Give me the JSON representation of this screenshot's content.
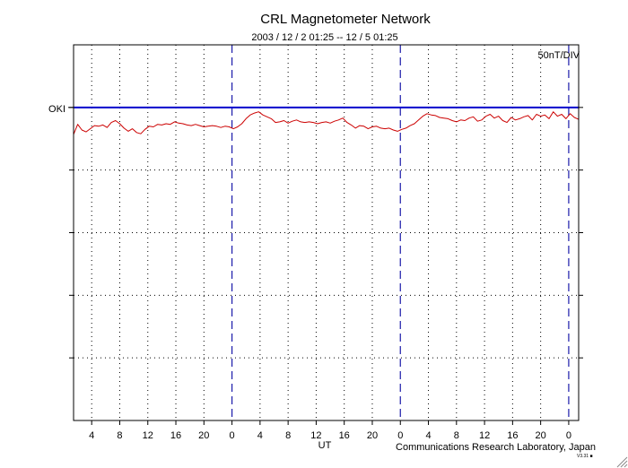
{
  "chart_data": {
    "type": "line",
    "title": "CRL Magnetometer Network",
    "subtitle": "2003 / 12 /  2   01:25 -- 12 /  5   01:25",
    "xlabel": "UT",
    "scale_label": "50nT/DIV",
    "credit": "Communications Research Laboratory, Japan",
    "corner_mark": "V3.31 ■",
    "xlim": [
      1.417,
      73.417
    ],
    "x_tick_values": [
      4,
      8,
      12,
      16,
      20,
      24,
      28,
      32,
      36,
      40,
      44,
      48,
      52,
      56,
      60,
      64,
      68,
      72
    ],
    "x_tick_labels": [
      "4",
      "8",
      "12",
      "16",
      "20",
      "0",
      "4",
      "8",
      "12",
      "16",
      "20",
      "0",
      "4",
      "8",
      "12",
      "16",
      "20",
      "0"
    ],
    "day_boundaries": [
      24,
      48,
      72
    ],
    "ylim": [
      0,
      6
    ],
    "y_gridlines": [
      1,
      2,
      3,
      4,
      5
    ],
    "station": {
      "name": "OKI",
      "baseline": 5
    },
    "series": [
      {
        "name": "OKI",
        "color": "#cc0000",
        "x": [
          1.42,
          2.0,
          2.6,
          3.2,
          3.8,
          4.4,
          5.0,
          5.6,
          6.2,
          6.8,
          7.4,
          8.0,
          8.6,
          9.2,
          9.8,
          10.4,
          11.0,
          11.6,
          12.2,
          12.8,
          13.4,
          14.0,
          14.6,
          15.2,
          15.8,
          16.4,
          17.0,
          17.6,
          18.2,
          18.8,
          19.4,
          20.0,
          20.6,
          21.2,
          21.8,
          22.4,
          23.0,
          23.6,
          24.2,
          24.8,
          25.4,
          26.0,
          26.6,
          27.2,
          27.8,
          28.4,
          29.0,
          29.6,
          30.2,
          30.8,
          31.4,
          32.0,
          32.6,
          33.2,
          33.8,
          34.4,
          35.0,
          35.6,
          36.2,
          36.8,
          37.4,
          38.0,
          38.6,
          39.2,
          39.8,
          40.4,
          41.0,
          41.6,
          42.2,
          42.8,
          43.4,
          44.0,
          44.6,
          45.2,
          45.8,
          46.4,
          47.0,
          47.6,
          48.2,
          48.8,
          49.4,
          50.0,
          50.6,
          51.2,
          51.8,
          52.4,
          53.0,
          53.6,
          54.2,
          54.8,
          55.4,
          56.0,
          56.6,
          57.2,
          57.8,
          58.4,
          59.0,
          59.6,
          60.2,
          60.8,
          61.4,
          62.0,
          62.6,
          63.2,
          63.8,
          64.4,
          65.0,
          65.6,
          66.2,
          66.8,
          67.4,
          68.0,
          68.6,
          69.2,
          69.8,
          70.4,
          71.0,
          71.6,
          72.2,
          72.8,
          73.4
        ],
        "y": [
          4.57,
          4.73,
          4.64,
          4.61,
          4.66,
          4.71,
          4.7,
          4.72,
          4.68,
          4.76,
          4.79,
          4.74,
          4.67,
          4.62,
          4.66,
          4.6,
          4.58,
          4.65,
          4.7,
          4.69,
          4.73,
          4.72,
          4.74,
          4.73,
          4.77,
          4.75,
          4.74,
          4.72,
          4.71,
          4.73,
          4.71,
          4.69,
          4.7,
          4.71,
          4.7,
          4.68,
          4.7,
          4.69,
          4.66,
          4.69,
          4.74,
          4.82,
          4.88,
          4.91,
          4.93,
          4.88,
          4.85,
          4.82,
          4.76,
          4.77,
          4.79,
          4.75,
          4.78,
          4.8,
          4.77,
          4.76,
          4.77,
          4.76,
          4.74,
          4.76,
          4.77,
          4.75,
          4.78,
          4.8,
          4.83,
          4.76,
          4.72,
          4.67,
          4.71,
          4.7,
          4.66,
          4.69,
          4.7,
          4.67,
          4.66,
          4.67,
          4.64,
          4.62,
          4.65,
          4.67,
          4.71,
          4.74,
          4.8,
          4.86,
          4.9,
          4.88,
          4.87,
          4.84,
          4.83,
          4.82,
          4.79,
          4.77,
          4.8,
          4.79,
          4.83,
          4.85,
          4.78,
          4.8,
          4.86,
          4.89,
          4.83,
          4.86,
          4.79,
          4.76,
          4.84,
          4.8,
          4.82,
          4.85,
          4.87,
          4.8,
          4.89,
          4.86,
          4.88,
          4.82,
          4.93,
          4.86,
          4.89,
          4.82,
          4.9,
          4.84,
          4.81
        ]
      }
    ]
  }
}
